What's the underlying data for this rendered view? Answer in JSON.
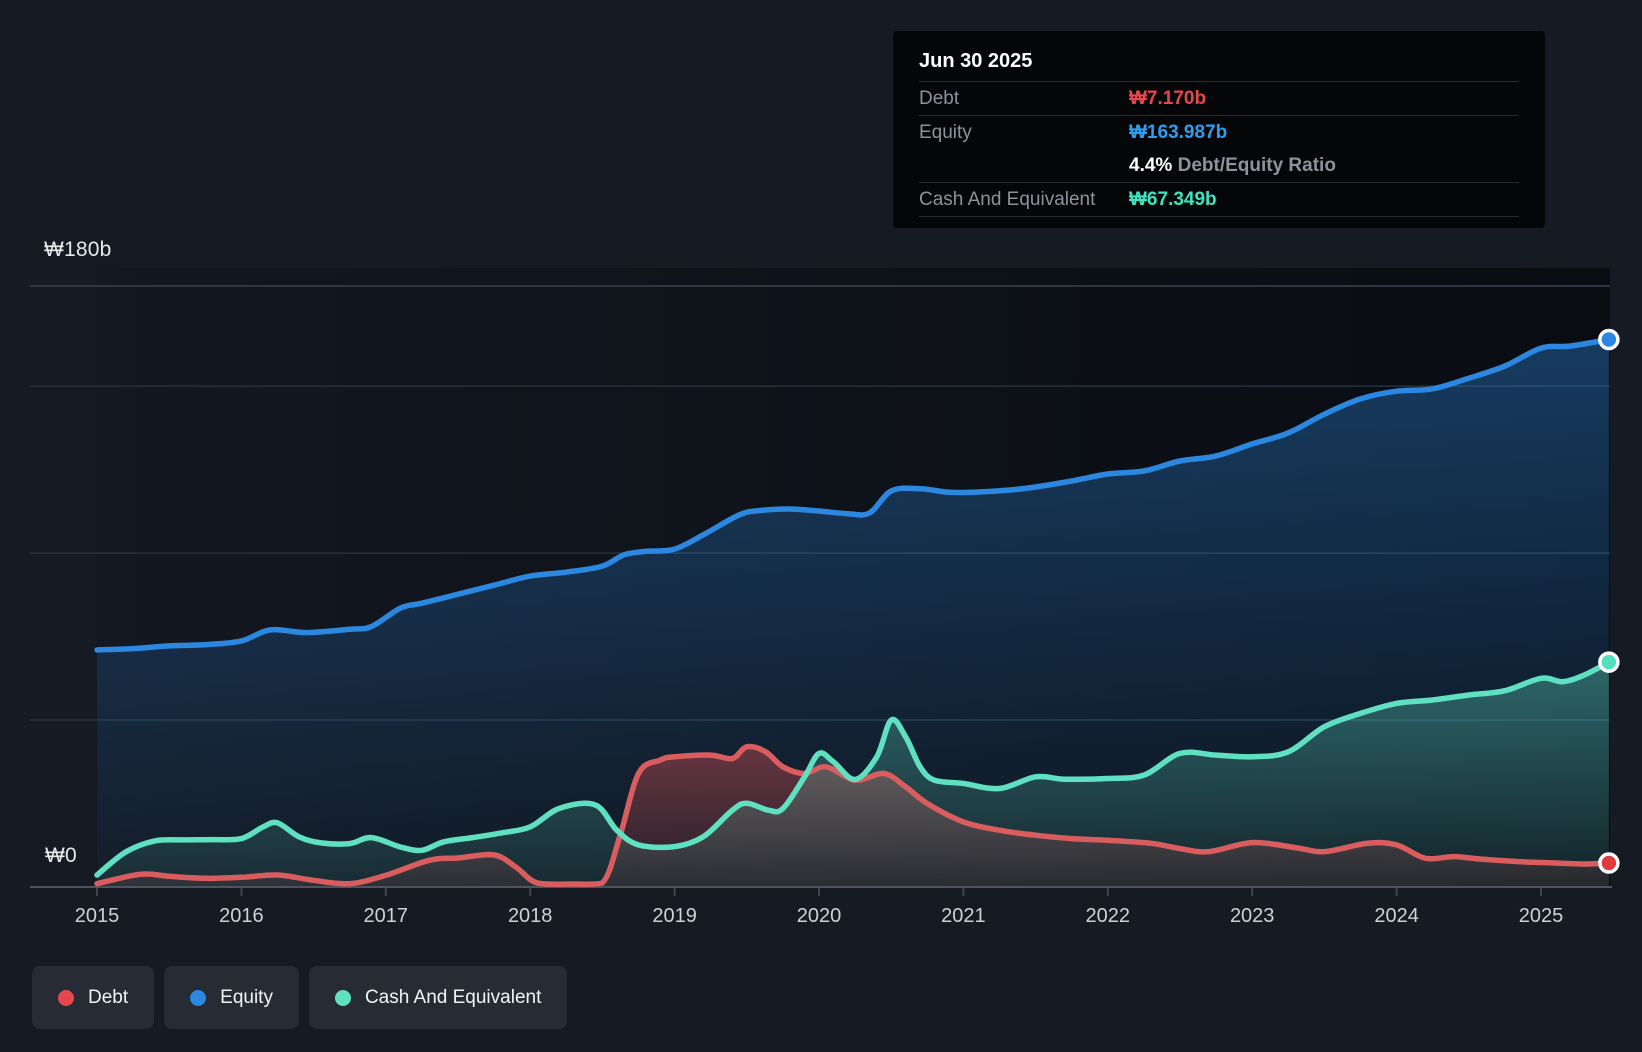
{
  "accent_colors": {
    "debt": "#e5484d",
    "debt_line": "#d95c5e",
    "equity": "#2b87e0",
    "equity_value": "#2f9ded",
    "cash": "#5fe0c1",
    "cash_value": "#3ee4bf",
    "background": "#151a23",
    "plot_backdrop": "#0c1018",
    "grid_faint": "#27303d",
    "grid_bright": "#3b424e",
    "axis_line": "#4e545d"
  },
  "tooltip": {
    "title": "Jun 30 2025",
    "debt_label": "Debt",
    "debt_value": "₩7.170b",
    "equity_label": "Equity",
    "equity_value": "₩163.987b",
    "ratio_value": "4.4%",
    "ratio_label": " Debt/Equity Ratio",
    "cash_label": "Cash And Equivalent",
    "cash_value": "₩67.349b"
  },
  "legend": {
    "items": [
      {
        "label": "Debt",
        "color": "#e5484d"
      },
      {
        "label": "Equity",
        "color": "#2b87e0"
      },
      {
        "label": "Cash And Equivalent",
        "color": "#5fe0c1"
      }
    ]
  },
  "chart_data": {
    "type": "area",
    "unit": "₩ billions",
    "x_ticks": [
      2015,
      2016,
      2017,
      2018,
      2019,
      2020,
      2021,
      2022,
      2023,
      2024,
      2025
    ],
    "y_axis": {
      "max_label": "₩180b",
      "zero_label": "₩0",
      "ylim": [
        0,
        180
      ],
      "gridlines": [
        50,
        100,
        150,
        180
      ],
      "grid_on": true,
      "legend_position": "bottom-left"
    },
    "last_point_date": "Jun 30 2025",
    "series": [
      {
        "name": "Equity",
        "color": "#2b87e0",
        "points": [
          [
            2015.0,
            71.0
          ],
          [
            2015.25,
            71.4
          ],
          [
            2015.5,
            72.2
          ],
          [
            2015.75,
            72.6
          ],
          [
            2016.0,
            73.7
          ],
          [
            2016.2,
            77.0
          ],
          [
            2016.45,
            76.2
          ],
          [
            2016.75,
            77.2
          ],
          [
            2016.9,
            78.0
          ],
          [
            2017.1,
            83.5
          ],
          [
            2017.25,
            85.0
          ],
          [
            2017.5,
            87.7
          ],
          [
            2017.75,
            90.4
          ],
          [
            2018.0,
            93.1
          ],
          [
            2018.25,
            94.3
          ],
          [
            2018.5,
            96.1
          ],
          [
            2018.65,
            99.5
          ],
          [
            2018.8,
            100.5
          ],
          [
            2019.0,
            101.2
          ],
          [
            2019.2,
            105.5
          ],
          [
            2019.45,
            111.5
          ],
          [
            2019.6,
            112.8
          ],
          [
            2019.8,
            113.2
          ],
          [
            2020.0,
            112.6
          ],
          [
            2020.2,
            111.8
          ],
          [
            2020.35,
            112.0
          ],
          [
            2020.5,
            118.6
          ],
          [
            2020.7,
            119.3
          ],
          [
            2020.9,
            118.2
          ],
          [
            2021.1,
            118.3
          ],
          [
            2021.3,
            118.8
          ],
          [
            2021.5,
            119.8
          ],
          [
            2021.75,
            121.6
          ],
          [
            2022.0,
            123.7
          ],
          [
            2022.25,
            124.6
          ],
          [
            2022.5,
            127.6
          ],
          [
            2022.75,
            129.1
          ],
          [
            2023.0,
            132.7
          ],
          [
            2023.25,
            136.0
          ],
          [
            2023.5,
            141.6
          ],
          [
            2023.75,
            146.2
          ],
          [
            2024.0,
            148.5
          ],
          [
            2024.25,
            149.2
          ],
          [
            2024.5,
            152.4
          ],
          [
            2024.75,
            156.0
          ],
          [
            2025.0,
            161.4
          ],
          [
            2025.2,
            162.0
          ],
          [
            2025.47,
            163.987
          ]
        ]
      },
      {
        "name": "Debt",
        "color": "#d95c5e",
        "points": [
          [
            2015.0,
            1.0
          ],
          [
            2015.3,
            3.8
          ],
          [
            2015.5,
            3.2
          ],
          [
            2015.75,
            2.6
          ],
          [
            2016.0,
            2.9
          ],
          [
            2016.25,
            3.6
          ],
          [
            2016.5,
            2.0
          ],
          [
            2016.75,
            1.0
          ],
          [
            2017.0,
            3.5
          ],
          [
            2017.3,
            8.0
          ],
          [
            2017.5,
            8.7
          ],
          [
            2017.75,
            9.6
          ],
          [
            2017.9,
            6.0
          ],
          [
            2018.05,
            1.2
          ],
          [
            2018.3,
            0.9
          ],
          [
            2018.5,
            1.2
          ],
          [
            2018.62,
            15.0
          ],
          [
            2018.75,
            34.0
          ],
          [
            2018.9,
            38.0
          ],
          [
            2019.0,
            39.0
          ],
          [
            2019.25,
            39.5
          ],
          [
            2019.4,
            38.5
          ],
          [
            2019.5,
            42.0
          ],
          [
            2019.63,
            40.5
          ],
          [
            2019.75,
            36.0
          ],
          [
            2019.9,
            34.0
          ],
          [
            2020.05,
            36.0
          ],
          [
            2020.25,
            32.0
          ],
          [
            2020.45,
            34.0
          ],
          [
            2020.6,
            30.0
          ],
          [
            2020.75,
            25.0
          ],
          [
            2021.0,
            19.5
          ],
          [
            2021.25,
            17.0
          ],
          [
            2021.5,
            15.5
          ],
          [
            2021.75,
            14.5
          ],
          [
            2022.0,
            14.0
          ],
          [
            2022.3,
            13.1
          ],
          [
            2022.5,
            11.5
          ],
          [
            2022.7,
            10.6
          ],
          [
            2023.0,
            13.3
          ],
          [
            2023.3,
            11.8
          ],
          [
            2023.5,
            10.6
          ],
          [
            2023.8,
            13.1
          ],
          [
            2024.0,
            12.6
          ],
          [
            2024.2,
            8.6
          ],
          [
            2024.4,
            9.1
          ],
          [
            2024.6,
            8.3
          ],
          [
            2024.85,
            7.6
          ],
          [
            2025.1,
            7.2
          ],
          [
            2025.3,
            6.9
          ],
          [
            2025.47,
            7.17
          ]
        ]
      },
      {
        "name": "Cash And Equivalent",
        "color": "#5fe0c1",
        "points": [
          [
            2015.0,
            3.6
          ],
          [
            2015.2,
            10.5
          ],
          [
            2015.4,
            13.8
          ],
          [
            2015.6,
            14.1
          ],
          [
            2015.8,
            14.2
          ],
          [
            2016.0,
            14.5
          ],
          [
            2016.15,
            18.0
          ],
          [
            2016.25,
            19.2
          ],
          [
            2016.4,
            15.0
          ],
          [
            2016.55,
            13.2
          ],
          [
            2016.75,
            13.0
          ],
          [
            2016.9,
            14.8
          ],
          [
            2017.1,
            12.0
          ],
          [
            2017.25,
            11.0
          ],
          [
            2017.4,
            13.5
          ],
          [
            2017.6,
            14.8
          ],
          [
            2017.8,
            16.2
          ],
          [
            2018.0,
            18.0
          ],
          [
            2018.2,
            23.5
          ],
          [
            2018.45,
            24.6
          ],
          [
            2018.6,
            17.0
          ],
          [
            2018.75,
            12.6
          ],
          [
            2019.0,
            12.1
          ],
          [
            2019.2,
            15.1
          ],
          [
            2019.4,
            23.0
          ],
          [
            2019.5,
            25.1
          ],
          [
            2019.65,
            23.0
          ],
          [
            2019.75,
            23.5
          ],
          [
            2019.9,
            33.0
          ],
          [
            2020.0,
            40.0
          ],
          [
            2020.1,
            37.5
          ],
          [
            2020.25,
            32.2
          ],
          [
            2020.4,
            39.0
          ],
          [
            2020.5,
            50.0
          ],
          [
            2020.6,
            45.0
          ],
          [
            2020.7,
            36.0
          ],
          [
            2020.8,
            32.0
          ],
          [
            2021.0,
            31.0
          ],
          [
            2021.25,
            29.5
          ],
          [
            2021.5,
            33.0
          ],
          [
            2021.7,
            32.3
          ],
          [
            2022.0,
            32.5
          ],
          [
            2022.25,
            33.5
          ],
          [
            2022.5,
            40.0
          ],
          [
            2022.75,
            39.5
          ],
          [
            2023.0,
            39.0
          ],
          [
            2023.25,
            40.5
          ],
          [
            2023.5,
            48.0
          ],
          [
            2023.75,
            52.0
          ],
          [
            2024.0,
            55.0
          ],
          [
            2024.25,
            56.0
          ],
          [
            2024.5,
            57.5
          ],
          [
            2024.75,
            58.8
          ],
          [
            2025.0,
            62.5
          ],
          [
            2025.15,
            61.5
          ],
          [
            2025.3,
            63.5
          ],
          [
            2025.47,
            67.349
          ]
        ]
      }
    ]
  }
}
